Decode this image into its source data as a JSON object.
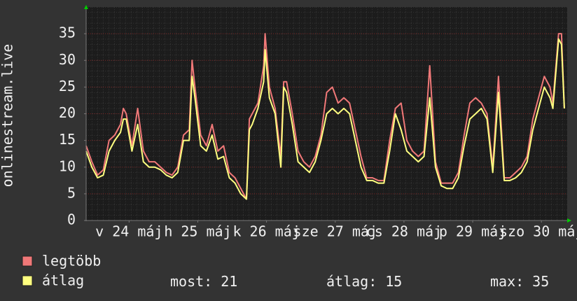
{
  "chart_data": {
    "type": "line",
    "y_label": "onlinestream.live",
    "xlim": [
      0,
      168
    ],
    "xticks": [
      {
        "value": 15,
        "label": "v 24 máj"
      },
      {
        "value": 39,
        "label": "h 25 máj"
      },
      {
        "value": 63,
        "label": "k 26 máj"
      },
      {
        "value": 87,
        "label": "sze 27 máj"
      },
      {
        "value": 111,
        "label": "cs 28 máj"
      },
      {
        "value": 135,
        "label": "p 29 máj"
      },
      {
        "value": 159,
        "label": "szo 30 máj"
      }
    ],
    "ylim": [
      0,
      40
    ],
    "yticks": [
      0,
      5,
      10,
      15,
      20,
      25,
      30,
      35
    ],
    "grid": true,
    "x": [
      0,
      2,
      4,
      6,
      8,
      10,
      12,
      13,
      14,
      16,
      18,
      20,
      22,
      24,
      26,
      28,
      30,
      32,
      34,
      36,
      37,
      38,
      40,
      42,
      44,
      46,
      48,
      50,
      52,
      54,
      56,
      57,
      58,
      60,
      62,
      62.5,
      64,
      66,
      68,
      69,
      70,
      72,
      74,
      76,
      78,
      80,
      82,
      84,
      86,
      88,
      90,
      92,
      94,
      96,
      98,
      100,
      102,
      104,
      106,
      108,
      110,
      112,
      114,
      116,
      118,
      120,
      122,
      124,
      126,
      128,
      130,
      132,
      134,
      136,
      138,
      140,
      142,
      144,
      146,
      148,
      150,
      152,
      154,
      156,
      158,
      160,
      162,
      163,
      165,
      166,
      167
    ],
    "series": [
      {
        "name": "legtöbb",
        "color": "#f07878",
        "values": [
          14,
          11,
          8.5,
          9.5,
          15,
          16,
          18,
          21,
          20,
          14,
          21,
          13,
          11,
          11,
          10,
          9,
          8.5,
          10,
          16,
          17,
          30,
          25,
          16,
          14,
          18,
          13,
          14,
          9,
          8,
          6,
          4,
          19,
          20,
          22,
          29,
          35,
          25,
          21,
          12,
          26,
          26,
          20,
          13,
          11,
          10,
          12,
          16,
          24,
          25,
          22,
          23,
          22,
          17,
          12,
          8,
          8,
          7.5,
          7.5,
          15,
          21,
          22,
          15,
          13,
          12,
          13,
          29,
          11,
          7,
          7,
          7,
          9,
          16,
          22,
          23,
          22,
          20,
          10,
          27,
          8,
          8,
          9,
          10,
          12,
          19,
          23,
          27,
          25,
          22,
          35,
          35,
          21
        ]
      },
      {
        "name": "átlag",
        "color": "#ffff80",
        "values": [
          13,
          10,
          8,
          8.5,
          13,
          15,
          16.5,
          19,
          19,
          13,
          18,
          11,
          10,
          10,
          9.5,
          8.5,
          8,
          9,
          15,
          15,
          27,
          23,
          14,
          13,
          16,
          11.5,
          12,
          8,
          7,
          5,
          4,
          17,
          18,
          21,
          26,
          32,
          23,
          20,
          10,
          25,
          24,
          18,
          11,
          10,
          9,
          11,
          15,
          20,
          21,
          20,
          21,
          20,
          15,
          10,
          7.5,
          7.5,
          7,
          7,
          13,
          20,
          17,
          13,
          12,
          11,
          12,
          23,
          10,
          6.5,
          6,
          6,
          8,
          14,
          19,
          20,
          21,
          19,
          9,
          24,
          7.5,
          7.5,
          8,
          9,
          11,
          17,
          21,
          25,
          23,
          21,
          34,
          33,
          21
        ]
      }
    ],
    "stats": [
      {
        "label": "most:",
        "value": 21
      },
      {
        "label": "átlag:",
        "value": 15
      },
      {
        "label": "max:",
        "value": 35
      }
    ]
  }
}
